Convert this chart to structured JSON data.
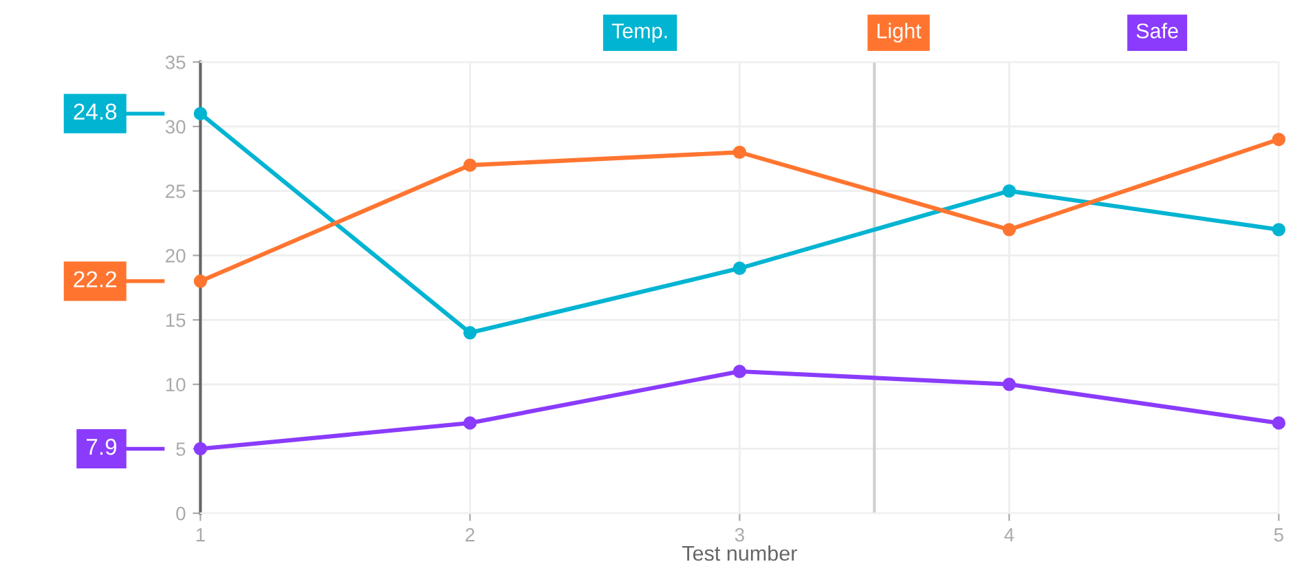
{
  "chart_data": {
    "type": "line",
    "xlabel": "Test number",
    "x": [
      1,
      2,
      3,
      4,
      5
    ],
    "series": [
      {
        "name": "Temp.",
        "color": "#00b4d2",
        "values": [
          31,
          14,
          19,
          25,
          22
        ]
      },
      {
        "name": "Light",
        "color": "#ff7530",
        "values": [
          18,
          27,
          28,
          22,
          29
        ]
      },
      {
        "name": "Safe",
        "color": "#8a3bfb",
        "values": [
          5,
          7,
          11,
          10,
          7
        ]
      }
    ],
    "annotations": [
      "24.8",
      "22.2",
      "7.9"
    ],
    "xlim": [
      1,
      5
    ],
    "xticks": [
      1,
      2,
      3,
      4,
      5
    ],
    "ylim": [
      0,
      35
    ],
    "yticks": [
      0,
      5,
      10,
      15,
      20,
      25,
      30,
      35
    ],
    "ref_lines": [
      {
        "axis": "x",
        "value": 3.5,
        "color": "#d0d0d0"
      }
    ],
    "grid": true,
    "legend": "top",
    "marker": "circle",
    "line_style": "solid"
  }
}
